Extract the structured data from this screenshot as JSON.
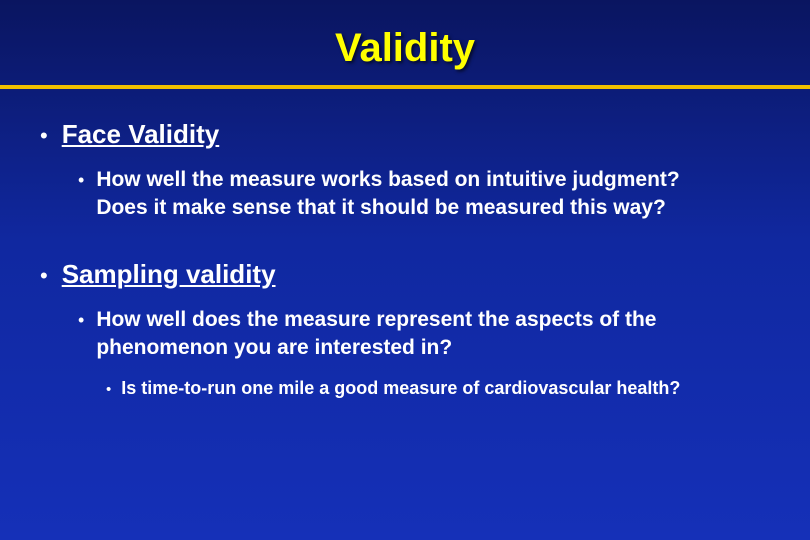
{
  "slide": {
    "title": "Validity",
    "title_color": "#ffff00",
    "divider_color": "#f0c000",
    "background_gradient": [
      "#0a1560",
      "#1028a0",
      "#1530b8"
    ],
    "text_color": "#ffffff",
    "font_family": "Arial",
    "title_fontsize": 40,
    "lvl1_fontsize": 26,
    "lvl2_fontsize": 21,
    "lvl3_fontsize": 18,
    "bullets": [
      {
        "label": "Face Validity",
        "underline": true,
        "children": [
          {
            "text": "How well the measure works based on intuitive judgment?   Does it make sense that it should be measured this way?",
            "children": []
          }
        ]
      },
      {
        "label": "Sampling validity",
        "underline": true,
        "children": [
          {
            "text": "How well does the measure represent the aspects of the phenomenon you are interested in?",
            "children": [
              {
                "text": "Is time-to-run one mile a good measure of cardiovascular health?"
              }
            ]
          }
        ]
      }
    ]
  }
}
